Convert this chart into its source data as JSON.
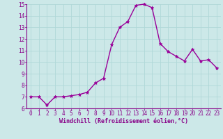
{
  "x": [
    0,
    1,
    2,
    3,
    4,
    5,
    6,
    7,
    8,
    9,
    10,
    11,
    12,
    13,
    14,
    15,
    16,
    17,
    18,
    19,
    20,
    21,
    22,
    23
  ],
  "y": [
    7.0,
    7.0,
    6.3,
    7.0,
    7.0,
    7.1,
    7.2,
    7.4,
    8.2,
    8.6,
    11.5,
    13.0,
    13.5,
    14.9,
    15.0,
    14.7,
    11.6,
    10.9,
    10.5,
    10.1,
    11.1,
    10.1,
    10.2,
    9.5
  ],
  "line_color": "#990099",
  "marker": "*",
  "marker_size": 3.5,
  "bg_color": "#cce8e8",
  "grid_color": "#b0d8d8",
  "xlabel": "Windchill (Refroidissement éolien,°C)",
  "xlabel_color": "#880088",
  "tick_color": "#880088",
  "spine_color": "#880088",
  "xlim_min": -0.5,
  "xlim_max": 23.5,
  "ylim_min": 6,
  "ylim_max": 15,
  "yticks": [
    6,
    7,
    8,
    9,
    10,
    11,
    12,
    13,
    14,
    15
  ],
  "xticks": [
    0,
    1,
    2,
    3,
    4,
    5,
    6,
    7,
    8,
    9,
    10,
    11,
    12,
    13,
    14,
    15,
    16,
    17,
    18,
    19,
    20,
    21,
    22,
    23
  ],
  "line_width": 1.0,
  "tick_fontsize": 5.5,
  "xlabel_fontsize": 6.0
}
